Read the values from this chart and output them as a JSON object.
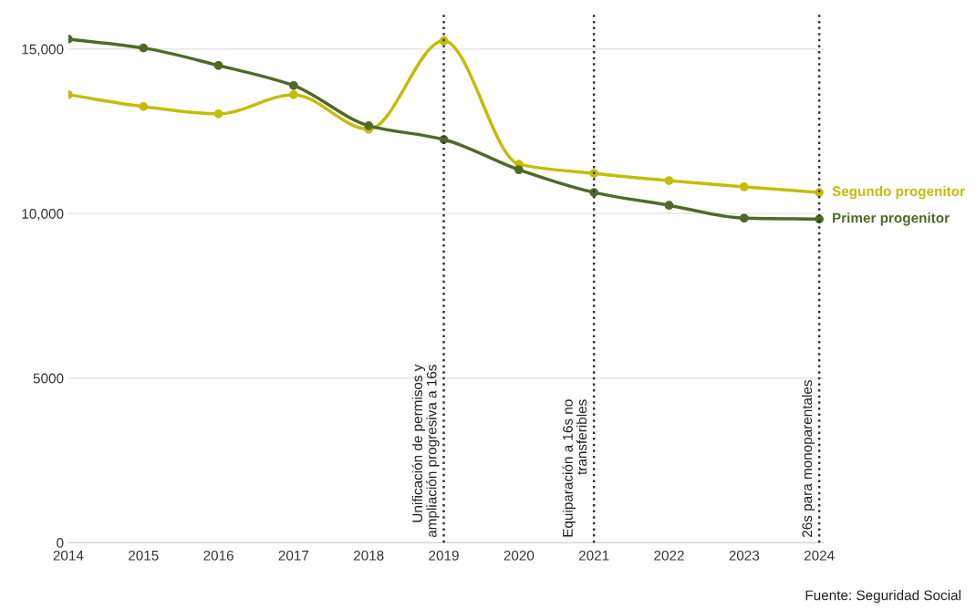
{
  "chart_data": {
    "type": "line",
    "x": [
      2014,
      2015,
      2016,
      2017,
      2018,
      2019,
      2020,
      2021,
      2022,
      2023,
      2024
    ],
    "series": [
      {
        "name": "Segundo progenitor",
        "color": "#c3bd06",
        "values": [
          13610,
          13250,
          13030,
          13610,
          12560,
          15250,
          11500,
          11220,
          11000,
          10810,
          10640
        ]
      },
      {
        "name": "Primer progenitor",
        "color": "#4f6a27",
        "values": [
          15300,
          15030,
          14500,
          13890,
          12670,
          12250,
          11330,
          10640,
          10250,
          9860,
          9830
        ]
      }
    ],
    "xlim": [
      2014,
      2024.06
    ],
    "xticks": [
      2014,
      2015,
      2016,
      2017,
      2018,
      2019,
      2020,
      2021,
      2022,
      2023,
      2024
    ],
    "ylim": [
      0,
      16100
    ],
    "yticks": [
      {
        "value": 0,
        "label": "0"
      },
      {
        "value": 5000,
        "label": "5000"
      },
      {
        "value": 10000,
        "label": "10,000"
      },
      {
        "value": 15000,
        "label": "15,000"
      }
    ],
    "grid": "y",
    "legend": false,
    "marker": "circle",
    "line_style": "solid",
    "ref_lines": [
      {
        "axis": "x",
        "value": 2019,
        "label": "Unificación de permisos y\nampliación progresiva a 16s",
        "color": "#333333",
        "line_style": "dotted"
      },
      {
        "axis": "x",
        "value": 2021,
        "label": "Equiparación a 16s no\ntransferibles",
        "color": "#333333",
        "line_style": "dotted"
      },
      {
        "axis": "x",
        "value": 2024,
        "label": "26s para monoparentales",
        "color": "#333333",
        "line_style": "dotted"
      }
    ],
    "annotations": [
      "Fuente: Seguridad Social"
    ]
  }
}
